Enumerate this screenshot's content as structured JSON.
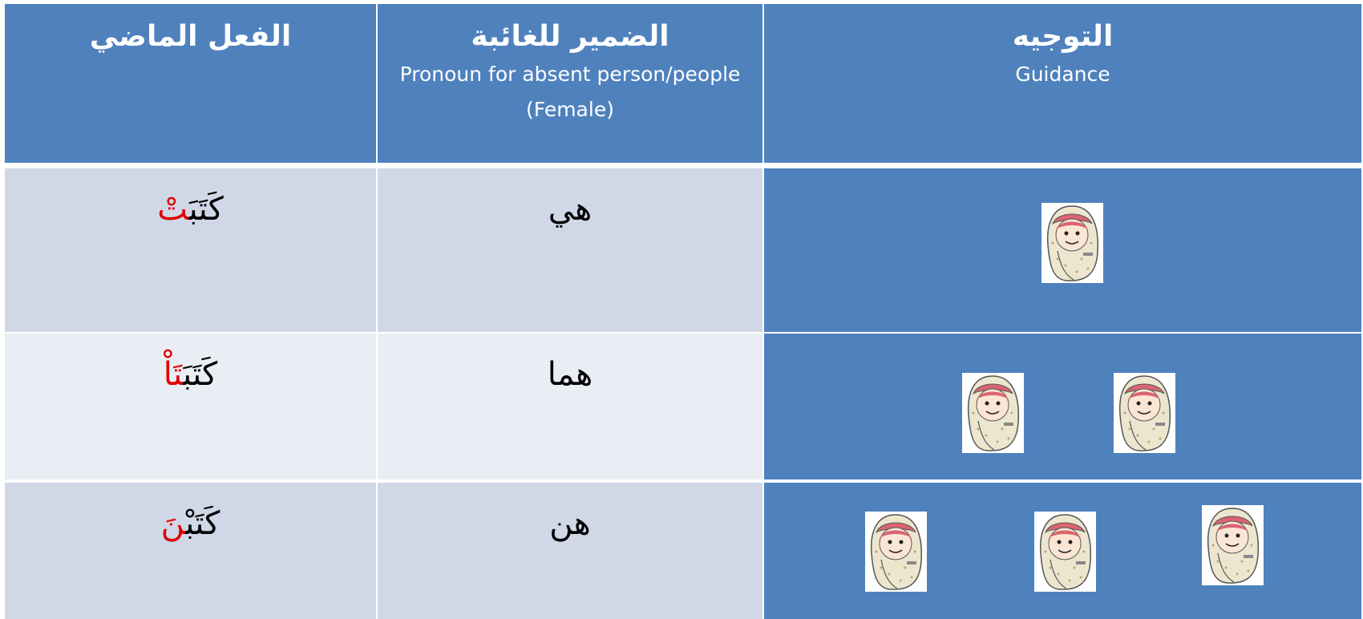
{
  "table": {
    "header": [
      {
        "arabic": "الفعل  الماضي"
      },
      {
        "arabic": "الضمير للغائبة",
        "english": "Pronoun for absent person/people (Female)"
      },
      {
        "arabic": "التوجيه",
        "english": "Guidance"
      }
    ],
    "rows": [
      {
        "verb_stem": "كَتَبَ",
        "verb_suffix": "تْ",
        "pronoun": "هي"
      },
      {
        "verb_stem": "كَتَبَ",
        "verb_suffix": "تَاْ",
        "pronoun": "هما"
      },
      {
        "verb_stem": "كَتَبْ",
        "verb_suffix": "نَ",
        "pronoun": "هن"
      }
    ]
  }
}
